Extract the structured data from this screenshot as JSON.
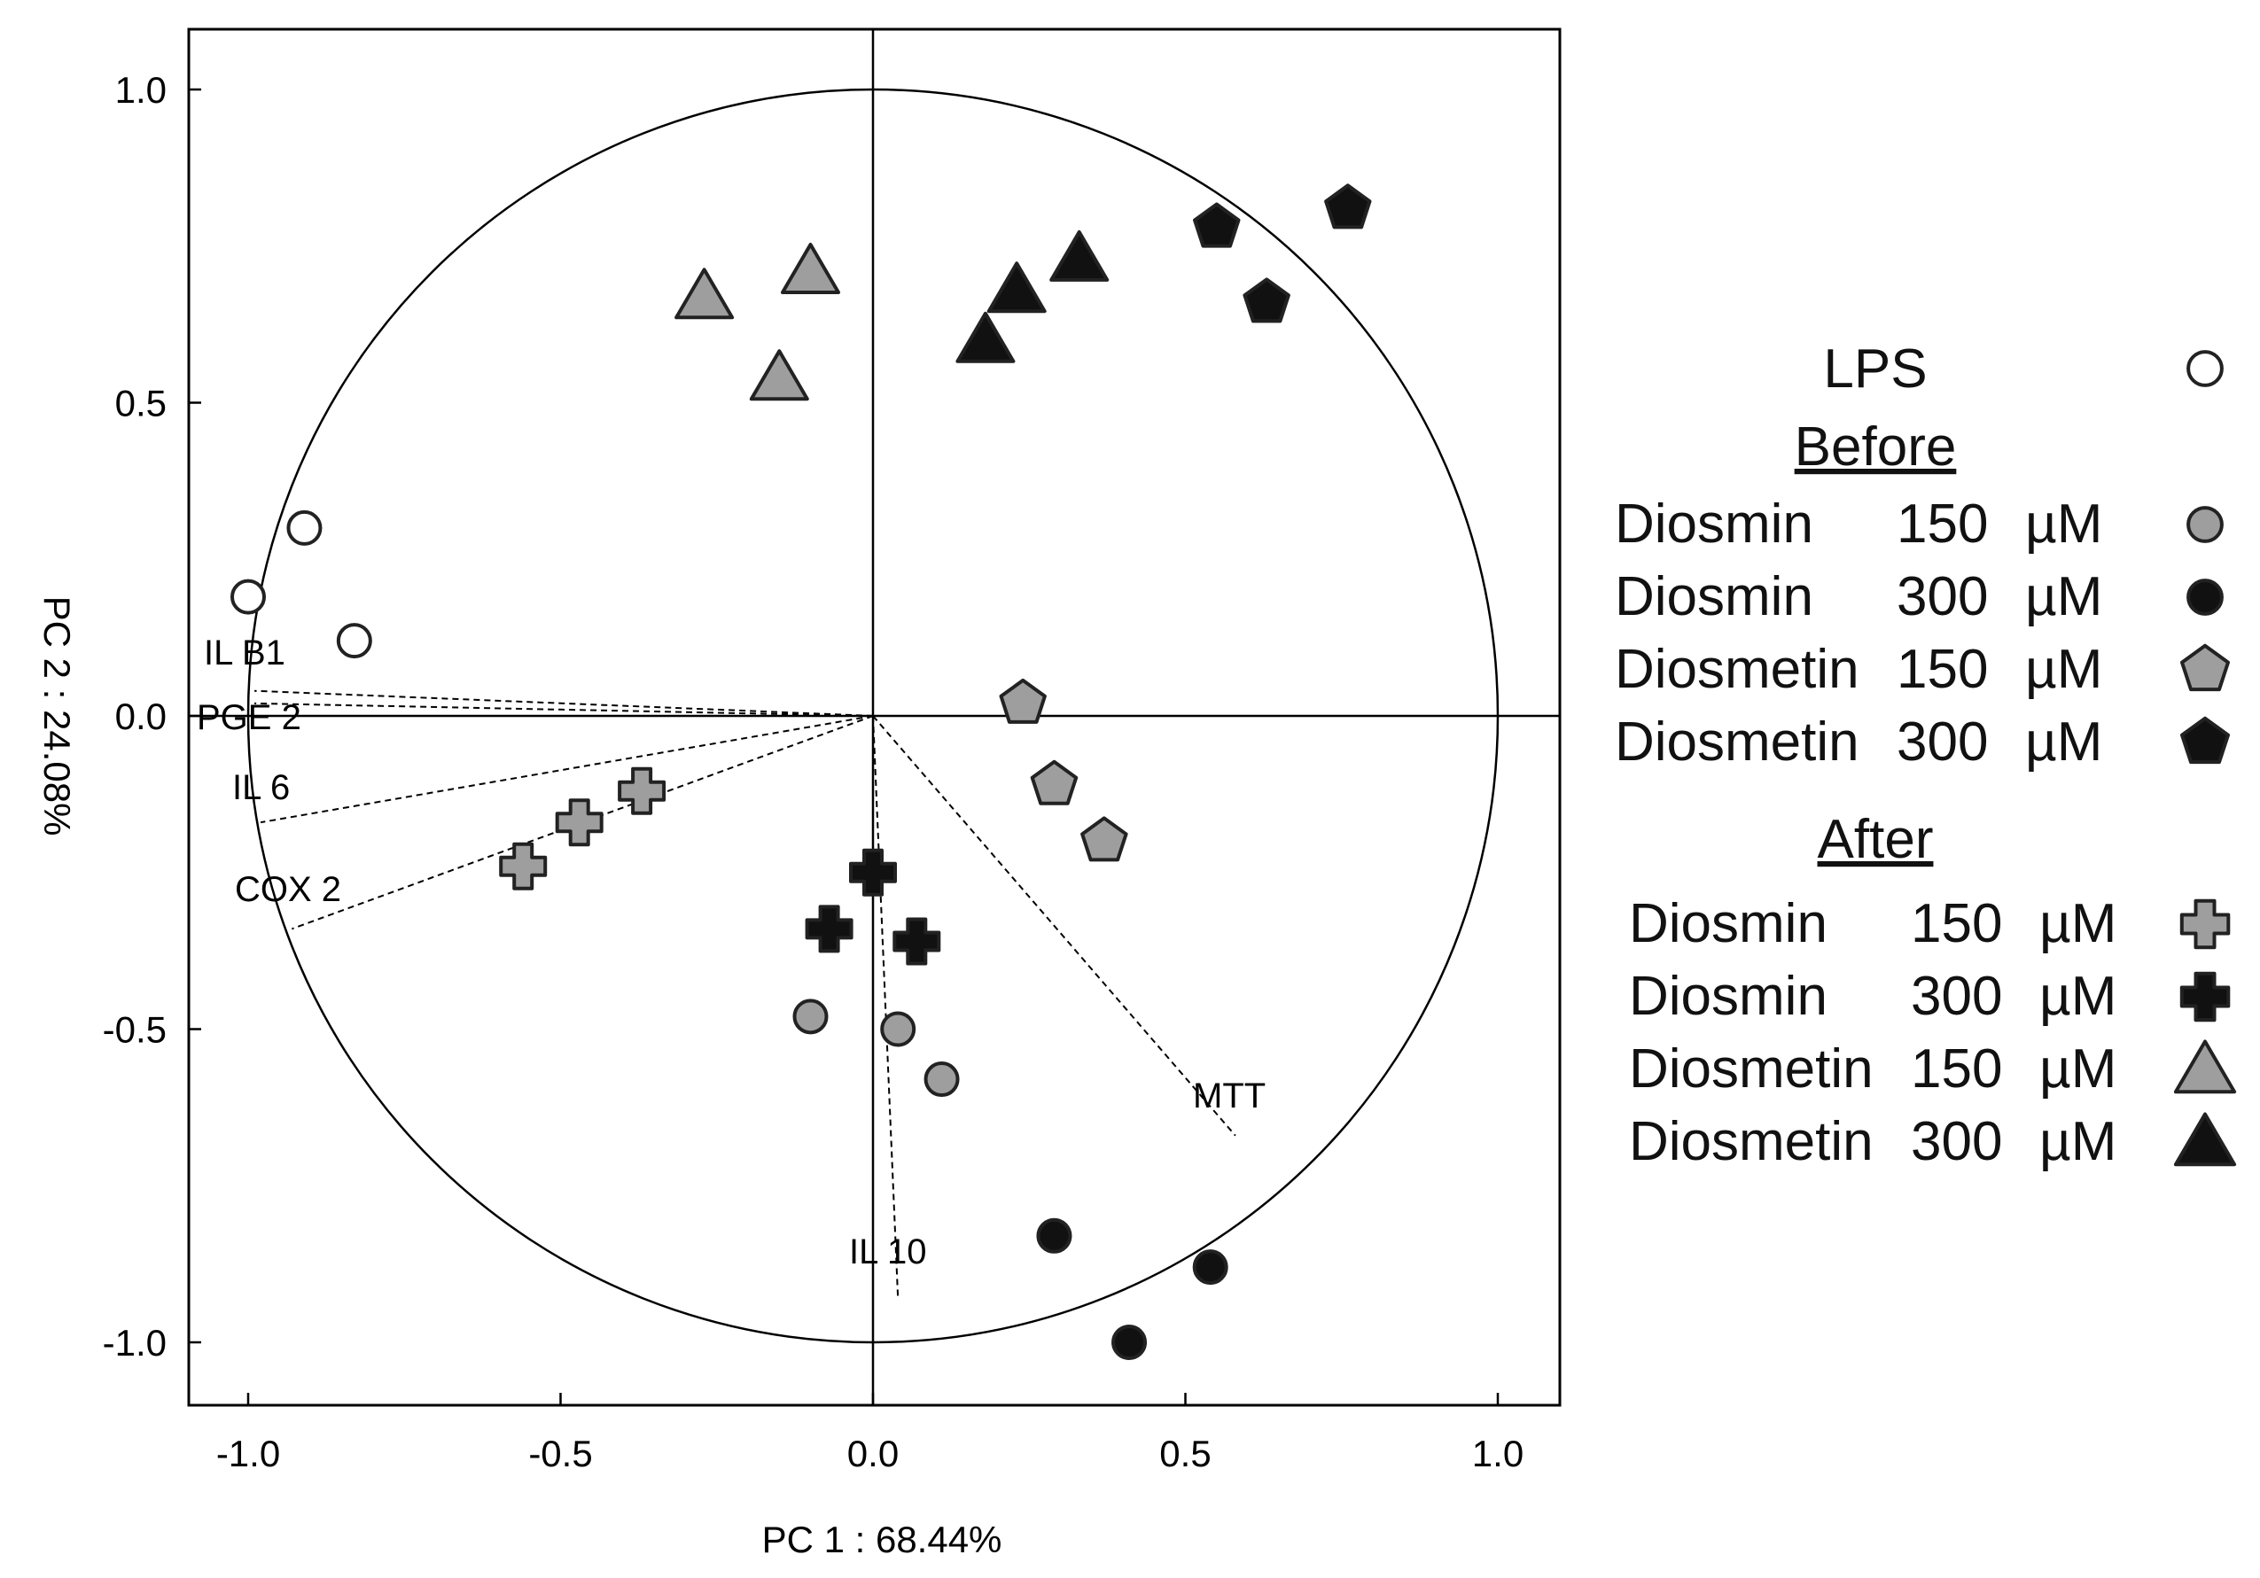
{
  "chart_data": {
    "type": "scatter",
    "title": "",
    "xlabel": "PC 1 : 68.44%",
    "ylabel": "PC 2 : 24.08%",
    "xlim": [
      -1.1,
      1.1
    ],
    "ylim": [
      -1.1,
      1.1
    ],
    "xticks": [
      -1.0,
      -0.5,
      0.0,
      0.5,
      1.0
    ],
    "yticks": [
      -1.0,
      -0.5,
      0.0,
      0.5,
      1.0
    ],
    "xtick_labels": [
      "-1.0",
      "-0.5",
      "0.0",
      "0.5",
      "1.0"
    ],
    "ytick_labels": [
      "-1.0",
      "-0.5",
      "0.0",
      "0.5",
      "1.0"
    ],
    "unit_circle": true,
    "vectors": [
      {
        "label": "IL B1",
        "x": -0.99,
        "y": 0.04
      },
      {
        "label": "PGE 2",
        "x": -0.99,
        "y": 0.02
      },
      {
        "label": "IL 6",
        "x": -0.98,
        "y": -0.17
      },
      {
        "label": "COX 2",
        "x": -0.93,
        "y": -0.34
      },
      {
        "label": "MTT",
        "x": 0.58,
        "y": -0.67
      },
      {
        "label": "IL 10",
        "x": 0.04,
        "y": -0.93
      }
    ],
    "legend_header": "LPS",
    "series": [
      {
        "name": "LPS",
        "group": "",
        "marker": "circle",
        "fill": "#ffffff",
        "points": [
          [
            -1.0,
            0.19
          ],
          [
            -0.91,
            0.3
          ],
          [
            -0.83,
            0.12
          ]
        ]
      },
      {
        "name": "Diosmin 150 µM",
        "group": "Before",
        "marker": "circle",
        "fill": "#9e9e9e",
        "points": [
          [
            -0.1,
            -0.48
          ],
          [
            0.04,
            -0.5
          ],
          [
            0.11,
            -0.58
          ]
        ]
      },
      {
        "name": "Diosmin 300 µM",
        "group": "Before",
        "marker": "circle",
        "fill": "#111111",
        "points": [
          [
            0.29,
            -0.83
          ],
          [
            0.54,
            -0.88
          ],
          [
            0.41,
            -1.0
          ]
        ]
      },
      {
        "name": "Diosmetin 150 µM",
        "group": "Before",
        "marker": "pentagon",
        "fill": "#9e9e9e",
        "points": [
          [
            0.24,
            0.02
          ],
          [
            0.29,
            -0.11
          ],
          [
            0.37,
            -0.2
          ]
        ]
      },
      {
        "name": "Diosmetin 300 µM",
        "group": "Before",
        "marker": "pentagon",
        "fill": "#111111",
        "points": [
          [
            0.55,
            0.78
          ],
          [
            0.76,
            0.81
          ],
          [
            0.63,
            0.66
          ]
        ]
      },
      {
        "name": "Diosmin 150 µM",
        "group": "After",
        "marker": "cross",
        "fill": "#9e9e9e",
        "points": [
          [
            -0.37,
            -0.12
          ],
          [
            -0.47,
            -0.17
          ],
          [
            -0.56,
            -0.24
          ]
        ]
      },
      {
        "name": "Diosmin 300 µM",
        "group": "After",
        "marker": "cross",
        "fill": "#111111",
        "points": [
          [
            0.0,
            -0.25
          ],
          [
            -0.07,
            -0.34
          ],
          [
            0.07,
            -0.36
          ]
        ]
      },
      {
        "name": "Diosmetin 150 µM",
        "group": "After",
        "marker": "triangle",
        "fill": "#9e9e9e",
        "points": [
          [
            -0.27,
            0.67
          ],
          [
            -0.1,
            0.71
          ],
          [
            -0.15,
            0.54
          ]
        ]
      },
      {
        "name": "Diosmetin 300 µM",
        "group": "After",
        "marker": "triangle",
        "fill": "#111111",
        "points": [
          [
            0.33,
            0.73
          ],
          [
            0.23,
            0.68
          ],
          [
            0.18,
            0.6
          ]
        ]
      }
    ]
  },
  "legend": {
    "lps_label": "LPS",
    "before_heading": "Before",
    "after_heading": "After",
    "before_items": [
      {
        "name": "Diosmin",
        "dose": "150",
        "unit": "µM"
      },
      {
        "name": "Diosmin",
        "dose": "300",
        "unit": "µM"
      },
      {
        "name": "Diosmetin",
        "dose": "150",
        "unit": "µM"
      },
      {
        "name": "Diosmetin",
        "dose": "300",
        "unit": "µM"
      }
    ],
    "after_items": [
      {
        "name": "Diosmin",
        "dose": "150",
        "unit": "µM"
      },
      {
        "name": "Diosmin",
        "dose": "300",
        "unit": "µM"
      },
      {
        "name": "Diosmetin",
        "dose": "150",
        "unit": "µM"
      },
      {
        "name": "Diosmetin",
        "dose": "300",
        "unit": "µM"
      }
    ]
  }
}
